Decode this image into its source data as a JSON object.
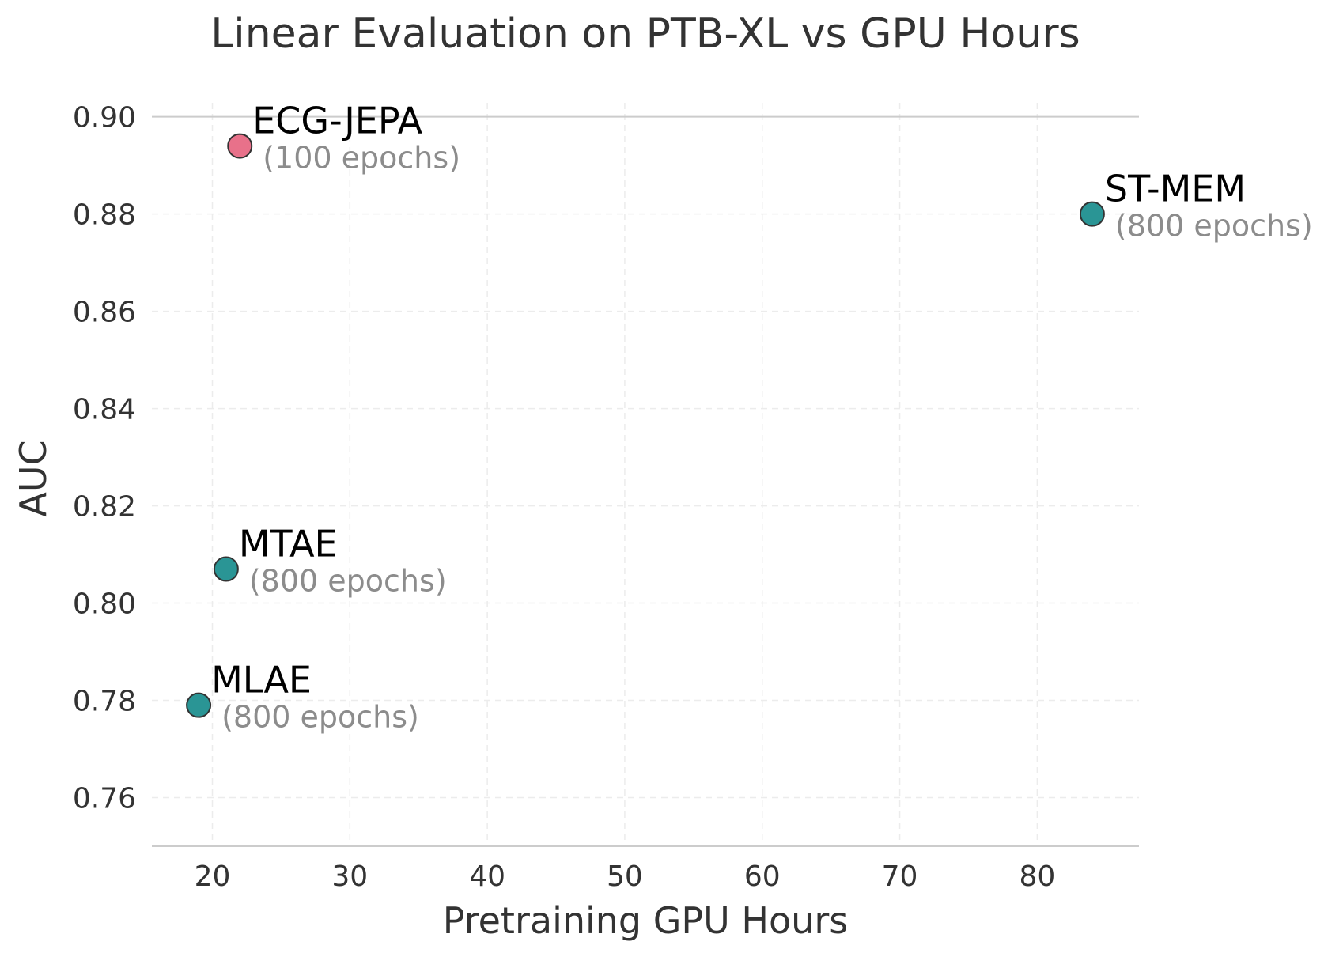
{
  "chart_data": {
    "type": "scatter",
    "title": "Linear Evaluation on PTB-XL vs GPU Hours",
    "xlabel": "Pretraining GPU Hours",
    "ylabel": "AUC",
    "xlim": [
      15.6,
      87.4
    ],
    "ylim": [
      0.75,
      0.9045
    ],
    "xticks": [
      20,
      30,
      40,
      50,
      60,
      70,
      80
    ],
    "yticks": [
      0.76,
      0.78,
      0.8,
      0.82,
      0.84,
      0.86,
      0.88,
      0.9
    ],
    "xtick_labels": [
      "20",
      "30",
      "40",
      "50",
      "60",
      "70",
      "80"
    ],
    "ytick_labels": [
      "0.76",
      "0.78",
      "0.80",
      "0.82",
      "0.84",
      "0.86",
      "0.88",
      "0.90"
    ],
    "grid": true,
    "points": [
      {
        "name": "ECG-JEPA",
        "note": "(100 epochs)",
        "x": 22,
        "y": 0.894,
        "color": "#e8718a"
      },
      {
        "name": "ST-MEM",
        "note": "(800 epochs)",
        "x": 84,
        "y": 0.88,
        "color": "#2a9595"
      },
      {
        "name": "MTAE",
        "note": "(800 epochs)",
        "x": 21,
        "y": 0.807,
        "color": "#2a9595"
      },
      {
        "name": "MLAE",
        "note": "(800 epochs)",
        "x": 19,
        "y": 0.779,
        "color": "#2a9595"
      }
    ]
  }
}
